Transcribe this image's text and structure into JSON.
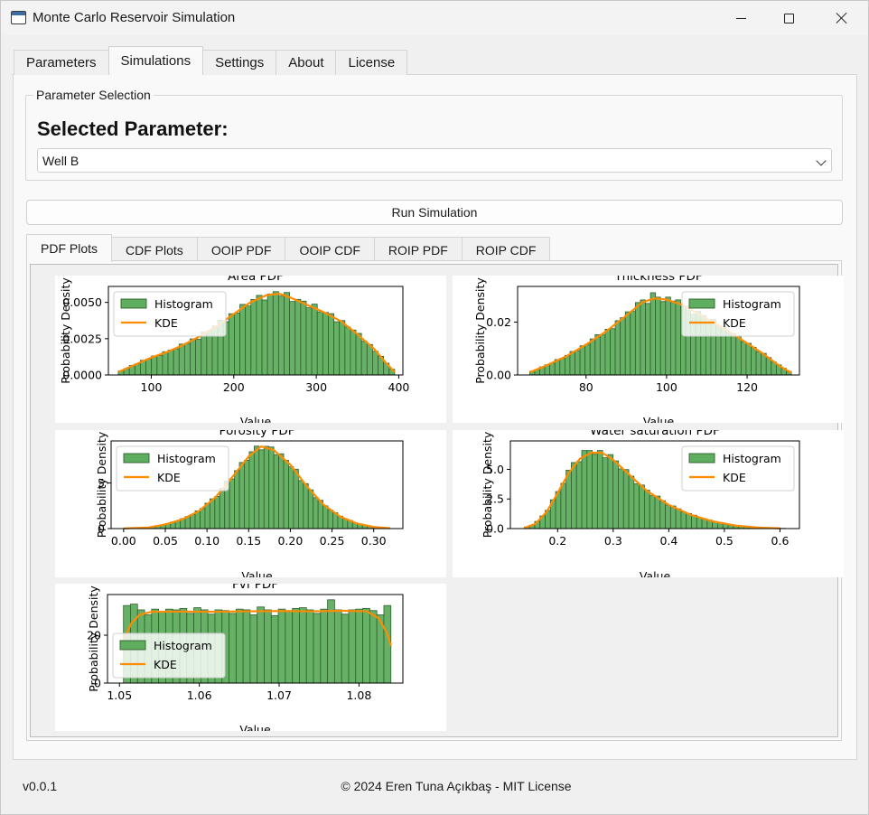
{
  "window": {
    "title": "Monte Carlo Reservoir Simulation",
    "icon": "app-window-icon"
  },
  "main_tabs": [
    {
      "label": "Parameters",
      "active": false
    },
    {
      "label": "Simulations",
      "active": true
    },
    {
      "label": "Settings",
      "active": false
    },
    {
      "label": "About",
      "active": false
    },
    {
      "label": "License",
      "active": false
    }
  ],
  "parameter_selection": {
    "group_title": "Parameter Selection",
    "heading": "Selected Parameter:",
    "selected_value": "Well B"
  },
  "run_button": "Run Simulation",
  "plot_tabs": [
    {
      "label": "PDF Plots",
      "active": true
    },
    {
      "label": "CDF Plots",
      "active": false
    },
    {
      "label": "OOIP PDF",
      "active": false
    },
    {
      "label": "OOIP CDF",
      "active": false
    },
    {
      "label": "ROIP PDF",
      "active": false
    },
    {
      "label": "ROIP CDF",
      "active": false
    }
  ],
  "footer": {
    "version": "v0.0.1",
    "copyright": "© 2024 Eren Tuna Açıkbaş - MIT License"
  },
  "colors": {
    "histogram": "#5fad5f",
    "histogram_edge": "#2f5f2f",
    "kde": "#ff8c00"
  },
  "chart_data": [
    {
      "type": "bar",
      "title": "Area PDF",
      "xlabel": "Value",
      "ylabel": "Probability Density",
      "xlim": [
        48,
        405
      ],
      "ylim": [
        0,
        0.0061
      ],
      "xticks": [
        100,
        200,
        300,
        400
      ],
      "yticks": [
        0.0,
        0.0025,
        0.005
      ],
      "ytick_labels": [
        "0.0000",
        "0.0025",
        "0.0050"
      ],
      "legend": {
        "position": "upper-left",
        "entries": [
          "Histogram",
          "KDE"
        ]
      },
      "kde_points": [
        [
          60,
          0.0002
        ],
        [
          80,
          0.0007
        ],
        [
          100,
          0.0012
        ],
        [
          120,
          0.0016
        ],
        [
          140,
          0.0021
        ],
        [
          160,
          0.0027
        ],
        [
          180,
          0.0034
        ],
        [
          200,
          0.0042
        ],
        [
          220,
          0.005
        ],
        [
          240,
          0.0055
        ],
        [
          255,
          0.0056
        ],
        [
          270,
          0.0053
        ],
        [
          290,
          0.0048
        ],
        [
          310,
          0.0043
        ],
        [
          330,
          0.0037
        ],
        [
          350,
          0.0028
        ],
        [
          370,
          0.0018
        ],
        [
          385,
          0.0008
        ],
        [
          395,
          0.0002
        ]
      ],
      "histogram": {
        "range": [
          60,
          395
        ],
        "bins": 50,
        "jitter": [
          0.02,
          -0.04,
          0.05,
          -0.03,
          0.06,
          -0.02,
          0.03,
          -0.05,
          0.04,
          0.01,
          -0.03,
          0.05,
          -0.02,
          0.03,
          -0.06,
          0.04,
          -0.01,
          0.02,
          0.06,
          -0.04,
          0.03,
          -0.02,
          0.05,
          -0.03,
          0.02,
          0.04,
          -0.05,
          0.01,
          0.03,
          -0.02,
          0.05,
          -0.04,
          0.02,
          0.03,
          -0.03,
          0.06,
          -0.02,
          0.01,
          0.04,
          -0.05,
          0.03,
          -0.01,
          0.02,
          0.05,
          -0.03,
          0.02,
          -0.04,
          0.03,
          0.01,
          -0.02
        ]
      }
    },
    {
      "type": "bar",
      "title": "Thickness PDF",
      "xlabel": "Value",
      "ylabel": "Probability Density",
      "xlim": [
        63,
        133
      ],
      "ylim": [
        0,
        0.0335
      ],
      "xticks": [
        80,
        100,
        120
      ],
      "yticks": [
        0.0,
        0.02
      ],
      "ytick_labels": [
        "0.00",
        "0.02"
      ],
      "legend": {
        "position": "upper-right",
        "entries": [
          "Histogram",
          "KDE"
        ]
      },
      "kde_points": [
        [
          66,
          0.001
        ],
        [
          70,
          0.0035
        ],
        [
          75,
          0.007
        ],
        [
          80,
          0.0115
        ],
        [
          85,
          0.0165
        ],
        [
          90,
          0.0225
        ],
        [
          94,
          0.0275
        ],
        [
          97,
          0.029
        ],
        [
          100,
          0.0285
        ],
        [
          104,
          0.0265
        ],
        [
          108,
          0.023
        ],
        [
          112,
          0.0195
        ],
        [
          116,
          0.016
        ],
        [
          120,
          0.012
        ],
        [
          124,
          0.008
        ],
        [
          128,
          0.0035
        ],
        [
          131,
          0.0008
        ]
      ],
      "histogram": {
        "range": [
          66,
          131
        ],
        "bins": 52,
        "jitter": [
          0.03,
          -0.05,
          0.04,
          0.02,
          -0.03,
          0.06,
          -0.02,
          0.01,
          0.05,
          -0.04,
          0.03,
          -0.02,
          0.04,
          0.06,
          -0.03,
          0.02,
          -0.05,
          0.03,
          0.01,
          0.04,
          -0.02,
          0.05,
          0.03,
          -0.04,
          0.08,
          0.02,
          -0.03,
          0.04,
          0.01,
          0.05,
          -0.02,
          0.03,
          -0.05,
          0.04,
          0.02,
          -0.03,
          0.06,
          -0.01,
          0.03,
          -0.04,
          0.02,
          0.05,
          -0.02,
          0.03,
          0.01,
          -0.04,
          0.04,
          0.02,
          -0.03,
          0.05,
          0.01,
          -0.02
        ]
      }
    },
    {
      "type": "bar",
      "title": "Porosity PDF",
      "xlabel": "Value",
      "ylabel": "Probability Density",
      "xlim": [
        -0.015,
        0.335
      ],
      "ylim": [
        0,
        9.6
      ],
      "xticks": [
        0.0,
        0.05,
        0.1,
        0.15,
        0.2,
        0.25,
        0.3
      ],
      "xtick_labels": [
        "0.00",
        "0.05",
        "0.10",
        "0.15",
        "0.20",
        "0.25",
        "0.30"
      ],
      "yticks": [
        0,
        5
      ],
      "legend": {
        "position": "upper-left",
        "entries": [
          "Histogram",
          "KDE"
        ]
      },
      "kde_points": [
        [
          0.0,
          0.02
        ],
        [
          0.03,
          0.12
        ],
        [
          0.05,
          0.45
        ],
        [
          0.07,
          1.0
        ],
        [
          0.09,
          1.9
        ],
        [
          0.11,
          3.4
        ],
        [
          0.13,
          5.6
        ],
        [
          0.15,
          7.9
        ],
        [
          0.165,
          9.0
        ],
        [
          0.18,
          8.6
        ],
        [
          0.2,
          7.0
        ],
        [
          0.22,
          4.6
        ],
        [
          0.24,
          2.6
        ],
        [
          0.26,
          1.3
        ],
        [
          0.28,
          0.55
        ],
        [
          0.3,
          0.18
        ],
        [
          0.32,
          0.04
        ]
      ],
      "histogram": {
        "range": [
          0.015,
          0.31
        ],
        "bins": 50,
        "jitter": [
          0.02,
          -0.03,
          0.04,
          -0.02,
          0.05,
          -0.04,
          0.03,
          0.02,
          -0.05,
          0.04,
          0.01,
          -0.03,
          0.05,
          -0.02,
          0.03,
          0.04,
          -0.04,
          0.02,
          0.05,
          -0.03,
          0.01,
          0.04,
          -0.02,
          0.03,
          0.05,
          -0.04,
          0.02,
          0.03,
          -0.03,
          0.04,
          0.01,
          -0.02,
          0.05,
          -0.04,
          0.03,
          0.02,
          -0.05,
          0.04,
          0.01,
          -0.03,
          0.02,
          0.04,
          -0.02,
          0.03,
          -0.04,
          0.05,
          0.01,
          -0.03,
          0.02,
          0.04
        ]
      }
    },
    {
      "type": "bar",
      "title": "Water saturation PDF",
      "xlabel": "Value",
      "ylabel": "Probability Density",
      "xlim": [
        0.115,
        0.635
      ],
      "ylim": [
        0,
        7.4
      ],
      "xticks": [
        0.2,
        0.3,
        0.4,
        0.5,
        0.6
      ],
      "xtick_labels": [
        "0.2",
        "0.3",
        "0.4",
        "0.5",
        "0.6"
      ],
      "yticks": [
        0,
        2.5,
        5
      ],
      "ytick_labels": [
        "0.0",
        "2.5",
        "5.0"
      ],
      "legend": {
        "position": "upper-right",
        "entries": [
          "Histogram",
          "KDE"
        ]
      },
      "kde_points": [
        [
          0.14,
          0.05
        ],
        [
          0.16,
          0.4
        ],
        [
          0.18,
          1.4
        ],
        [
          0.2,
          3.0
        ],
        [
          0.22,
          4.7
        ],
        [
          0.24,
          5.9
        ],
        [
          0.26,
          6.4
        ],
        [
          0.28,
          6.4
        ],
        [
          0.3,
          5.8
        ],
        [
          0.33,
          4.5
        ],
        [
          0.36,
          3.2
        ],
        [
          0.4,
          2.0
        ],
        [
          0.44,
          1.15
        ],
        [
          0.48,
          0.6
        ],
        [
          0.52,
          0.25
        ],
        [
          0.56,
          0.09
        ],
        [
          0.6,
          0.02
        ]
      ],
      "histogram": {
        "range": [
          0.14,
          0.61
        ],
        "bins": 50,
        "jitter": [
          0.03,
          -0.04,
          0.05,
          0.02,
          -0.03,
          0.04,
          0.01,
          -0.02,
          0.05,
          0.06,
          -0.03,
          0.08,
          0.04,
          -0.02,
          0.03,
          -0.04,
          0.05,
          0.02,
          -0.03,
          0.04,
          0.01,
          -0.05,
          0.03,
          0.02,
          -0.04,
          0.05,
          0.01,
          -0.03,
          0.04,
          0.02,
          -0.02,
          0.03,
          0.05,
          -0.04,
          0.01,
          0.03,
          -0.02,
          0.04,
          0.02,
          -0.03,
          0.05,
          0.01,
          -0.04,
          0.03,
          0.02,
          -0.02,
          0.04,
          0.01,
          -0.03,
          0.02
        ]
      }
    },
    {
      "type": "bar",
      "title": "Fvf PDF",
      "xlabel": "Value",
      "ylabel": "Probability Density",
      "xlim": [
        1.0485,
        1.0855
      ],
      "ylim": [
        0,
        37
      ],
      "xticks": [
        1.05,
        1.06,
        1.07,
        1.08
      ],
      "xtick_labels": [
        "1.05",
        "1.06",
        "1.07",
        "1.08"
      ],
      "yticks": [
        0,
        20
      ],
      "legend": {
        "position": "lower-left",
        "entries": [
          "Histogram",
          "KDE"
        ]
      },
      "kde_points": [
        [
          1.0505,
          18.0
        ],
        [
          1.0515,
          25.0
        ],
        [
          1.0525,
          28.5
        ],
        [
          1.054,
          29.8
        ],
        [
          1.058,
          29.9
        ],
        [
          1.062,
          29.8
        ],
        [
          1.066,
          30.0
        ],
        [
          1.07,
          30.1
        ],
        [
          1.074,
          30.0
        ],
        [
          1.078,
          30.2
        ],
        [
          1.081,
          30.0
        ],
        [
          1.0825,
          27.0
        ],
        [
          1.0835,
          21.0
        ],
        [
          1.084,
          15.5
        ]
      ],
      "histogram": {
        "range": [
          1.0505,
          1.084
        ],
        "bins": 38,
        "flat": 30.0,
        "jitter": [
          0.08,
          0.1,
          0.02,
          -0.05,
          0.03,
          0.0,
          0.03,
          0.02,
          0.04,
          -0.03,
          0.05,
          0.02,
          -0.04,
          0.02,
          0.01,
          -0.03,
          0.03,
          0.02,
          -0.05,
          0.06,
          0.02,
          -0.06,
          0.03,
          0.01,
          0.04,
          0.05,
          0.02,
          -0.03,
          0.03,
          0.16,
          0.02,
          -0.04,
          0.02,
          0.03,
          0.04,
          0.01,
          -0.05,
          0.08
        ]
      }
    }
  ]
}
